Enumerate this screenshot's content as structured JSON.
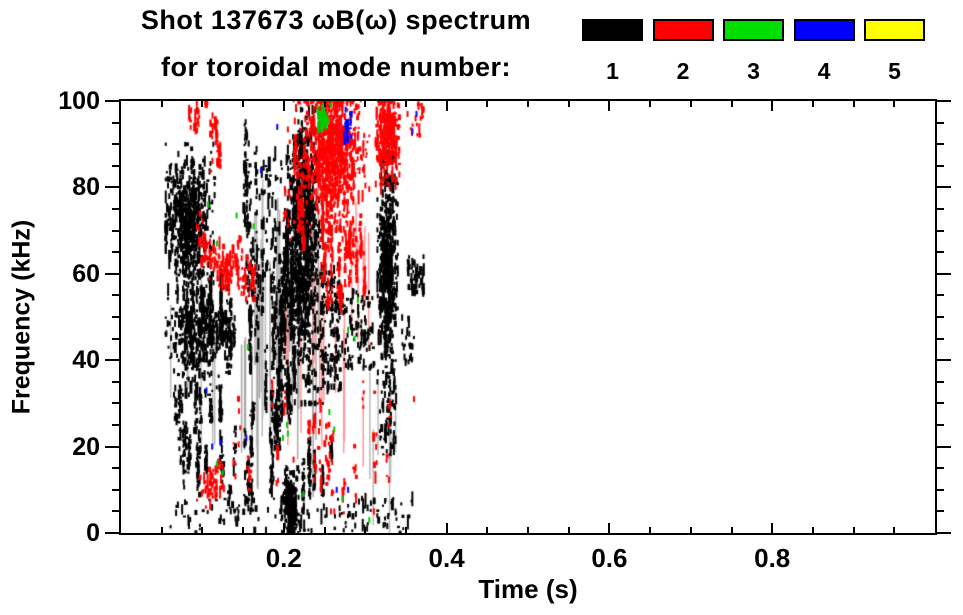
{
  "title": {
    "line1": "Shot 137673 ωB(ω) spectrum",
    "line2": "for toroidal mode number:"
  },
  "legend": {
    "entries": [
      {
        "label": "1",
        "color": "#000000"
      },
      {
        "label": "2",
        "color": "#ff0000"
      },
      {
        "label": "3",
        "color": "#00dd00"
      },
      {
        "label": "4",
        "color": "#0000ff"
      },
      {
        "label": "5",
        "color": "#ffff00"
      }
    ]
  },
  "chart_data": {
    "type": "scatter",
    "title": "Shot 137673 ωB(ω) spectrum for toroidal mode number: 1 2 3 4 5",
    "xlabel": "Time (s)",
    "ylabel": "Frequency (kHz)",
    "xlim": [
      0,
      1.0
    ],
    "ylim": [
      0,
      100
    ],
    "x_major_ticks": [
      0.2,
      0.4,
      0.6,
      0.8
    ],
    "x_major_labels": [
      "0.2",
      "0.4",
      "0.6",
      "0.8"
    ],
    "x_minor_step": 0.05,
    "y_major_ticks": [
      0,
      20,
      40,
      60,
      80,
      100
    ],
    "y_major_labels": [
      "0",
      "20",
      "40",
      "60",
      "80",
      "100"
    ],
    "y_minor_step": 5,
    "grid": false,
    "legend_position": "top-right",
    "mode_colors": {
      "1": "#000000",
      "2": "#ff0000",
      "3": "#00cc00",
      "4": "#0000ff",
      "5": "#ffff00"
    },
    "clusters": [
      {
        "m": 1,
        "shape": "blob",
        "c": [
          0.082,
          72
        ],
        "s": [
          0.013,
          7
        ],
        "t": [
          0.055,
          0.115
        ],
        "f": [
          50,
          90
        ],
        "n": 620
      },
      {
        "m": 1,
        "shape": "blob",
        "c": [
          0.09,
          47
        ],
        "s": [
          0.016,
          7
        ],
        "t": [
          0.055,
          0.135
        ],
        "f": [
          32,
          60
        ],
        "n": 420
      },
      {
        "m": 1,
        "shape": "cols",
        "t": [
          0.06,
          0.145
        ],
        "f": [
          8,
          34
        ],
        "n": 260,
        "k": 22
      },
      {
        "m": 1,
        "shape": "cols",
        "t": [
          0.1,
          0.16
        ],
        "f": [
          36,
          62
        ],
        "n": 240,
        "k": 16
      },
      {
        "m": 1,
        "shape": "cols",
        "t": [
          0.146,
          0.17
        ],
        "f": [
          30,
          97
        ],
        "n": 170,
        "k": 8
      },
      {
        "m": 1,
        "shape": "cols",
        "t": [
          0.17,
          0.196
        ],
        "f": [
          15,
          75
        ],
        "n": 160,
        "k": 10
      },
      {
        "m": 1,
        "shape": "cols",
        "t": [
          0.125,
          0.2
        ],
        "f": [
          2,
          30
        ],
        "n": 150,
        "k": 14
      },
      {
        "m": 1,
        "shape": "cols",
        "t": [
          0.22,
          0.265
        ],
        "f": [
          3,
          24
        ],
        "n": 120,
        "k": 8
      },
      {
        "m": 1,
        "shape": "rect",
        "t": [
          0.165,
          0.21
        ],
        "f": [
          55,
          88
        ],
        "n": 90
      },
      {
        "m": 1,
        "shape": "cols",
        "t": [
          0.193,
          0.215
        ],
        "f": [
          25,
          75
        ],
        "n": 280,
        "k": 12
      },
      {
        "m": 1,
        "shape": "blob",
        "c": [
          0.224,
          62
        ],
        "s": [
          0.011,
          13
        ],
        "t": [
          0.205,
          0.248
        ],
        "f": [
          30,
          93
        ],
        "n": 780
      },
      {
        "m": 1,
        "shape": "blob",
        "c": [
          0.224,
          80
        ],
        "s": [
          0.008,
          9
        ],
        "t": [
          0.212,
          0.24
        ],
        "f": [
          55,
          98
        ],
        "n": 260
      },
      {
        "m": 1,
        "shape": "rect",
        "t": [
          0.245,
          0.27
        ],
        "f": [
          33,
          62
        ],
        "n": 140
      },
      {
        "m": 1,
        "shape": "blob",
        "c": [
          0.208,
          6
        ],
        "s": [
          0.005,
          3.5
        ],
        "t": [
          0.197,
          0.22
        ],
        "f": [
          0,
          15
        ],
        "n": 230
      },
      {
        "m": 1,
        "shape": "blob",
        "c": [
          0.327,
          60
        ],
        "s": [
          0.006,
          10
        ],
        "t": [
          0.315,
          0.34
        ],
        "f": [
          35,
          82
        ],
        "n": 520
      },
      {
        "m": 1,
        "shape": "rect",
        "t": [
          0.318,
          0.338
        ],
        "f": [
          18,
          38
        ],
        "n": 70
      },
      {
        "m": 1,
        "shape": "rect",
        "t": [
          0.318,
          0.338
        ],
        "f": [
          80,
          90
        ],
        "n": 45
      },
      {
        "m": 1,
        "shape": "rect",
        "t": [
          0.06,
          0.36
        ],
        "f": [
          0,
          8
        ],
        "n": 130
      },
      {
        "m": 1,
        "shape": "rect",
        "t": [
          0.262,
          0.312
        ],
        "f": [
          38,
          56
        ],
        "n": 110
      },
      {
        "m": 1,
        "shape": "rect",
        "t": [
          0.352,
          0.372
        ],
        "f": [
          55,
          64
        ],
        "n": 55
      },
      {
        "m": 1,
        "shape": "rect",
        "t": [
          0.345,
          0.36
        ],
        "f": [
          38,
          50
        ],
        "n": 25
      },
      {
        "m": 2,
        "shape": "curve",
        "p": [
          [
            0.097,
            68
          ],
          [
            0.128,
            59.5
          ],
          [
            0.148,
            63.5
          ]
        ],
        "j": [
          0.004,
          2.2
        ],
        "n": 150
      },
      {
        "m": 2,
        "shape": "cols",
        "t": [
          0.083,
          0.125
        ],
        "f": [
          82,
          100
        ],
        "n": 90,
        "k": 8
      },
      {
        "m": 2,
        "shape": "blob",
        "c": [
          0.258,
          88
        ],
        "s": [
          0.018,
          8
        ],
        "t": [
          0.205,
          0.305
        ],
        "f": [
          68,
          100
        ],
        "n": 950
      },
      {
        "m": 2,
        "shape": "cols",
        "t": [
          0.2,
          0.225
        ],
        "f": [
          65,
          92
        ],
        "n": 90,
        "k": 8
      },
      {
        "m": 2,
        "shape": "cols",
        "t": [
          0.244,
          0.308
        ],
        "f": [
          48,
          75
        ],
        "n": 260,
        "k": 16
      },
      {
        "m": 2,
        "shape": "blob",
        "c": [
          0.327,
          92
        ],
        "s": [
          0.007,
          5
        ],
        "t": [
          0.313,
          0.342
        ],
        "f": [
          80,
          100
        ],
        "n": 300
      },
      {
        "m": 2,
        "shape": "cols",
        "t": [
          0.13,
          0.33
        ],
        "f": [
          4,
          36
        ],
        "n": 70,
        "k": 20
      },
      {
        "m": 2,
        "shape": "rect",
        "t": [
          0.148,
          0.165
        ],
        "f": [
          54,
          62
        ],
        "n": 40
      },
      {
        "m": 2,
        "shape": "blob",
        "c": [
          0.111,
          11
        ],
        "s": [
          0.008,
          2.5
        ],
        "t": [
          0.092,
          0.132
        ],
        "f": [
          6,
          16
        ],
        "n": 60
      },
      {
        "m": 2,
        "shape": "rect",
        "t": [
          0.355,
          0.372
        ],
        "f": [
          92,
          100
        ],
        "n": 18
      },
      {
        "m": 2,
        "shape": "cols",
        "t": [
          0.225,
          0.26
        ],
        "f": [
          10,
          28
        ],
        "n": 45,
        "k": 8
      },
      {
        "m": 3,
        "shape": "cols",
        "t": [
          0.236,
          0.253
        ],
        "f": [
          91,
          100
        ],
        "n": 55,
        "k": 5
      },
      {
        "m": 4,
        "shape": "cols",
        "t": [
          0.275,
          0.284
        ],
        "f": [
          90,
          100
        ],
        "n": 25,
        "k": 3
      }
    ],
    "singles": {
      "2": [
        [
          0.36,
          31
        ],
        [
          0.352,
          97
        ],
        [
          0.212,
          17
        ],
        [
          0.258,
          5
        ],
        [
          0.262,
          5
        ]
      ],
      "3": [
        [
          0.107,
          76
        ],
        [
          0.142,
          73.5
        ],
        [
          0.118,
          67
        ],
        [
          0.118,
          16
        ],
        [
          0.125,
          14
        ],
        [
          0.199,
          22
        ],
        [
          0.204,
          25
        ],
        [
          0.256,
          28
        ],
        [
          0.262,
          24
        ],
        [
          0.279,
          47
        ],
        [
          0.291,
          54
        ],
        [
          0.287,
          45
        ],
        [
          0.258,
          99
        ],
        [
          0.224,
          9
        ],
        [
          0.305,
          3
        ],
        [
          0.156,
          43
        ],
        [
          0.163,
          71
        ],
        [
          0.205,
          23
        ],
        [
          0.272,
          8
        ]
      ],
      "4": [
        [
          0.276,
          98
        ],
        [
          0.279,
          95
        ],
        [
          0.278,
          92
        ],
        [
          0.358,
          93
        ],
        [
          0.172,
          84
        ],
        [
          0.192,
          94
        ],
        [
          0.112,
          20
        ],
        [
          0.122,
          21
        ],
        [
          0.279,
          10
        ],
        [
          0.363,
          97
        ],
        [
          0.154,
          22
        ],
        [
          0.105,
          33
        ],
        [
          0.265,
          10
        ]
      ]
    },
    "streak_groups": [
      {
        "color": "#a8a8a8",
        "n": 26,
        "t": [
          0.147,
          0.258
        ],
        "fc": [
          25,
          68
        ],
        "hl": [
          8,
          26
        ]
      },
      {
        "color": "#bbbbbb",
        "n": 8,
        "t": [
          0.16,
          0.196
        ],
        "fc": [
          35,
          60
        ],
        "hl": [
          15,
          30
        ]
      },
      {
        "color": "#ff9999",
        "n": 12,
        "t": [
          0.19,
          0.312
        ],
        "fc": [
          20,
          55
        ],
        "hl": [
          6,
          18
        ]
      },
      {
        "color": "#ff9999",
        "n": 6,
        "t": [
          0.28,
          0.31
        ],
        "fc": [
          55,
          70
        ],
        "hl": [
          8,
          15
        ]
      },
      {
        "color": "#bbbbbb",
        "n": 6,
        "t": [
          0.3,
          0.345
        ],
        "fc": [
          8,
          30
        ],
        "hl": [
          6,
          14
        ]
      },
      {
        "color": "#bbbbbb",
        "n": 6,
        "t": [
          0.06,
          0.12
        ],
        "fc": [
          30,
          55
        ],
        "hl": [
          10,
          22
        ]
      }
    ]
  }
}
